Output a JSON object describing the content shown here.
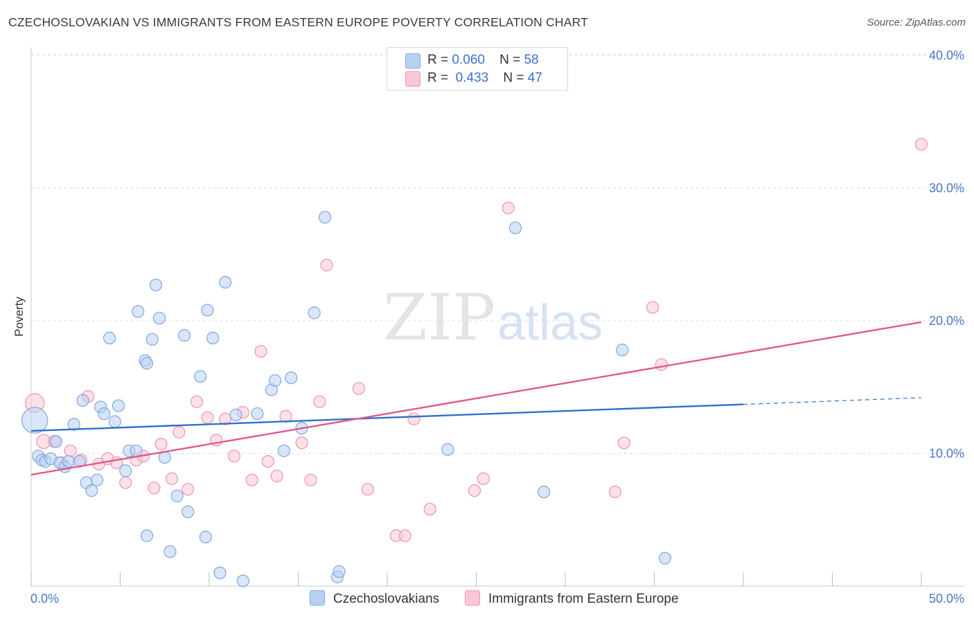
{
  "title": "CZECHOSLOVAKIAN VS IMMIGRANTS FROM EASTERN EUROPE POVERTY CORRELATION CHART",
  "source": "Source: ZipAtlas.com",
  "watermark": {
    "zip": "ZIP",
    "atlas": "atlas"
  },
  "legend": {
    "czech": {
      "r_label": "R =",
      "r_value": "0.060",
      "n_label": "N =",
      "n_value": "58"
    },
    "imm": {
      "r_label": "R =",
      "r_value": "0.433",
      "n_label": "N =",
      "n_value": "47"
    }
  },
  "bottom_legend": {
    "czech": "Czechoslovakians",
    "imm": "Immigrants from Eastern Europe"
  },
  "colors": {
    "czech_fill": "#b8d1f3",
    "czech_stroke": "#7fa7e3",
    "czech_line": "#2f6fcf",
    "imm_fill": "#f9c8d6",
    "imm_stroke": "#ee94b1",
    "imm_line": "#e2588a",
    "grid": "#dddddd",
    "axis_label": "#4a78c6"
  },
  "chart_data": {
    "type": "scatter",
    "title": "CZECHOSLOVAKIAN VS IMMIGRANTS FROM EASTERN EUROPE POVERTY CORRELATION CHART",
    "xlabel": "",
    "ylabel": "Poverty",
    "xlim": [
      0,
      50
    ],
    "ylim": [
      0,
      42
    ],
    "x_tick_labels": [
      "0.0%",
      "50.0%"
    ],
    "y_ticks": [
      10,
      20,
      30,
      40
    ],
    "y_tick_labels": [
      "10.0%",
      "20.0%",
      "30.0%",
      "40.0%"
    ],
    "series": [
      {
        "name": "Czechoslovakians",
        "points": [
          [
            0.2,
            12.5,
            2.2
          ],
          [
            0.4,
            9.8,
            1
          ],
          [
            0.6,
            9.5,
            1
          ],
          [
            0.8,
            9.4,
            1
          ],
          [
            1.1,
            9.6,
            1
          ],
          [
            1.4,
            10.9,
            1
          ],
          [
            1.6,
            9.3,
            1
          ],
          [
            1.9,
            9.0,
            1
          ],
          [
            2.1,
            9.4,
            1
          ],
          [
            2.4,
            12.2,
            1
          ],
          [
            2.7,
            9.4,
            1
          ],
          [
            2.9,
            14.0,
            1
          ],
          [
            3.1,
            7.8,
            1
          ],
          [
            3.4,
            7.2,
            1
          ],
          [
            3.7,
            8.0,
            1
          ],
          [
            3.9,
            13.5,
            1
          ],
          [
            4.1,
            13.0,
            1
          ],
          [
            4.4,
            18.7,
            1
          ],
          [
            4.7,
            12.4,
            1
          ],
          [
            4.9,
            13.6,
            1
          ],
          [
            5.3,
            8.7,
            1
          ],
          [
            5.5,
            10.2,
            1
          ],
          [
            5.9,
            10.2,
            1
          ],
          [
            6.0,
            20.7,
            1
          ],
          [
            6.4,
            17.0,
            1
          ],
          [
            6.5,
            3.8,
            1
          ],
          [
            6.5,
            16.8,
            1
          ],
          [
            6.8,
            18.6,
            1
          ],
          [
            7.0,
            22.7,
            1
          ],
          [
            7.2,
            20.2,
            1
          ],
          [
            7.5,
            9.7,
            1
          ],
          [
            7.8,
            2.6,
            1
          ],
          [
            8.2,
            6.8,
            1
          ],
          [
            8.6,
            18.9,
            1
          ],
          [
            8.8,
            5.6,
            1
          ],
          [
            9.5,
            15.8,
            1
          ],
          [
            9.8,
            3.7,
            1
          ],
          [
            9.9,
            20.8,
            1
          ],
          [
            10.2,
            18.7,
            1
          ],
          [
            10.6,
            1.0,
            1
          ],
          [
            10.9,
            22.9,
            1
          ],
          [
            11.5,
            12.9,
            1
          ],
          [
            11.9,
            0.4,
            1
          ],
          [
            12.7,
            13.0,
            1
          ],
          [
            13.5,
            14.8,
            1
          ],
          [
            13.7,
            15.5,
            1
          ],
          [
            14.2,
            10.2,
            1
          ],
          [
            14.6,
            15.7,
            1
          ],
          [
            15.2,
            11.9,
            1
          ],
          [
            15.9,
            20.6,
            1
          ],
          [
            16.5,
            27.8,
            1
          ],
          [
            17.2,
            0.7,
            1
          ],
          [
            17.3,
            1.1,
            1
          ],
          [
            23.4,
            10.3,
            1
          ],
          [
            27.2,
            27.0,
            1
          ],
          [
            28.8,
            7.1,
            1
          ],
          [
            33.2,
            17.8,
            1
          ],
          [
            35.6,
            2.1,
            1
          ]
        ]
      },
      {
        "name": "Immigrants from Eastern Europe",
        "points": [
          [
            0.2,
            13.8,
            1.6
          ],
          [
            0.7,
            10.9,
            1.2
          ],
          [
            1.3,
            10.9,
            1
          ],
          [
            1.7,
            9.3,
            1
          ],
          [
            2.2,
            10.2,
            1
          ],
          [
            2.8,
            9.5,
            1
          ],
          [
            3.2,
            14.3,
            1
          ],
          [
            3.8,
            9.2,
            1
          ],
          [
            4.3,
            9.6,
            1
          ],
          [
            4.8,
            9.3,
            1
          ],
          [
            5.3,
            7.8,
            1
          ],
          [
            5.9,
            9.5,
            1
          ],
          [
            6.3,
            9.8,
            1
          ],
          [
            6.9,
            7.4,
            1
          ],
          [
            7.3,
            10.7,
            1
          ],
          [
            7.9,
            8.1,
            1
          ],
          [
            8.3,
            11.6,
            1
          ],
          [
            8.8,
            7.3,
            1
          ],
          [
            9.3,
            13.9,
            1
          ],
          [
            9.9,
            12.7,
            1
          ],
          [
            10.4,
            11.0,
            1
          ],
          [
            10.9,
            12.6,
            1
          ],
          [
            11.4,
            9.8,
            1
          ],
          [
            11.9,
            13.1,
            1
          ],
          [
            12.4,
            8.0,
            1
          ],
          [
            12.9,
            17.7,
            1
          ],
          [
            13.3,
            9.4,
            1
          ],
          [
            13.8,
            8.3,
            1
          ],
          [
            14.3,
            12.8,
            1
          ],
          [
            15.2,
            10.8,
            1
          ],
          [
            15.7,
            8.0,
            1
          ],
          [
            16.2,
            13.9,
            1
          ],
          [
            16.6,
            24.2,
            1
          ],
          [
            18.4,
            14.9,
            1
          ],
          [
            18.9,
            7.3,
            1
          ],
          [
            20.5,
            3.8,
            1
          ],
          [
            21.0,
            3.8,
            1
          ],
          [
            21.5,
            12.6,
            1
          ],
          [
            22.4,
            5.8,
            1
          ],
          [
            24.9,
            7.2,
            1
          ],
          [
            25.4,
            8.1,
            1
          ],
          [
            26.8,
            28.5,
            1
          ],
          [
            32.8,
            7.1,
            1
          ],
          [
            33.3,
            10.8,
            1
          ],
          [
            34.9,
            21.0,
            1
          ],
          [
            35.4,
            16.7,
            1
          ],
          [
            50.0,
            33.3,
            1
          ]
        ]
      }
    ],
    "trendlines": [
      {
        "series": "Czechoslovakians",
        "x0": 0,
        "y0": 11.7,
        "x1": 40,
        "y1": 13.7,
        "dashed_x1": 50,
        "dashed_y1": 14.2
      },
      {
        "series": "Immigrants from Eastern Europe",
        "x0": 0,
        "y0": 8.4,
        "x1": 50,
        "y1": 19.9
      }
    ]
  }
}
